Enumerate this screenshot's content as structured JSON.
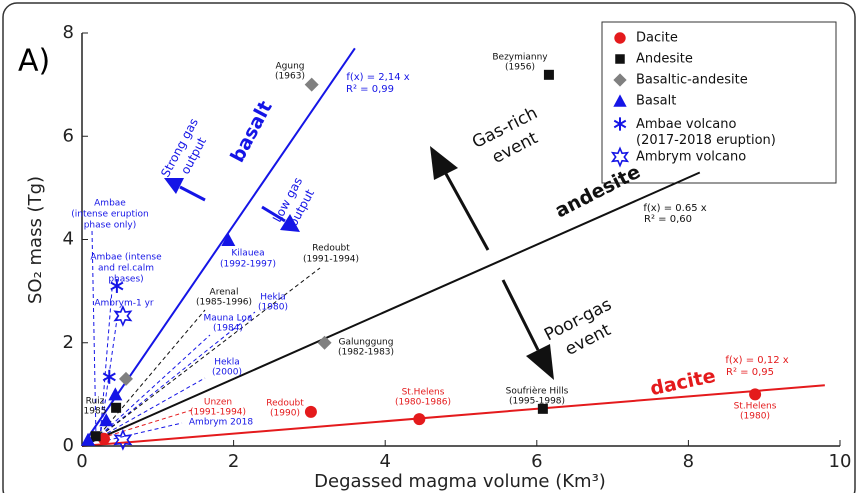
{
  "chart_data": {
    "type": "scatter",
    "panel_label": "A)",
    "x_label": "Degassed magma volume (Km³)",
    "y_label": "SO₂ mass (Tg)",
    "xlim": [
      0,
      10
    ],
    "ylim": [
      0,
      8
    ],
    "xticks": [
      0,
      2,
      4,
      6,
      8,
      10
    ],
    "yticks": [
      0,
      2,
      4,
      6,
      8
    ],
    "legend": "top-right",
    "series": [
      {
        "name": "Dacite",
        "color": "#e41a1c",
        "marker": "circle",
        "x": [
          0.29,
          3.02,
          4.45,
          8.88
        ],
        "values": [
          0.14,
          0.66,
          0.52,
          1.0
        ]
      },
      {
        "name": "Andesite",
        "color": "#111111",
        "marker": "square",
        "x": [
          0.18,
          0.45,
          6.08,
          6.16
        ],
        "values": [
          0.19,
          0.74,
          0.72,
          7.19
        ]
      },
      {
        "name": "Basaltic-andesite",
        "color": "#808080",
        "marker": "diamond",
        "x": [
          3.03,
          3.2,
          0.58
        ],
        "values": [
          7.0,
          2.0,
          1.3
        ]
      },
      {
        "name": "Basalt",
        "color": "#1515e6",
        "marker": "triangle",
        "x": [
          1.93,
          0.44,
          0.32,
          0.08
        ],
        "values": [
          3.99,
          1.0,
          0.5,
          0.12
        ]
      },
      {
        "name": "Ambae volcano\n(2017-2018 eruption)",
        "color": "#1515e6",
        "marker": "asterisk",
        "x": [
          0.46,
          0.36
        ],
        "values": [
          3.1,
          1.34
        ]
      },
      {
        "name": "Ambrym volcano",
        "color": "#1515e6",
        "marker": "star",
        "x": [
          0.54,
          0.54
        ],
        "values": [
          2.52,
          0.12
        ]
      }
    ],
    "fits": [
      {
        "label": "basalt",
        "color": "#1515e6",
        "slope": 2.14,
        "xmax": 3.6,
        "equation": "f(x) = 2,14 x",
        "r2": "R² = 0,99"
      },
      {
        "label": "andesite",
        "color": "#111111",
        "slope": 0.65,
        "xmax": 8.15,
        "equation": "f(x) = 0.65 x",
        "r2": "R² = 0,60"
      },
      {
        "label": "dacite",
        "color": "#e41a1c",
        "slope": 0.12,
        "xmax": 9.8,
        "equation": "f(x) = 0,12 x",
        "r2": "R² = 0,95"
      }
    ],
    "arrows": [
      "Gas-rich",
      "event",
      "Poor-gas",
      "event",
      "Strong gas",
      "output",
      "Low gas",
      "output"
    ],
    "annotations": [
      "Bezymianny",
      "(1956)",
      "Agung",
      "(1963)",
      "Redoubt",
      "(1991-1994)",
      "Arenal",
      "(1985-1996)",
      "Galunggung",
      "(1982-1983)",
      "Soufrière Hills",
      "(1995-1998)",
      "Ruiz",
      "1985",
      "Ambae",
      "(intense eruption",
      "phase only)",
      "Ambae  (intense",
      "and rel.calm",
      "phases)",
      "Ambrym-1 yr",
      "Kilauea",
      "(1992-1997)",
      "Hekla",
      "(1980)",
      "Mauna Loa",
      "(1984)",
      "Hekla",
      "(2000)",
      "Ambrym 2018",
      "Redoubt",
      "(1990)",
      "Unzen",
      "(1991-1994)",
      "St.Helens",
      "(1980-1986)",
      "St.Helens",
      "(1980)"
    ]
  }
}
